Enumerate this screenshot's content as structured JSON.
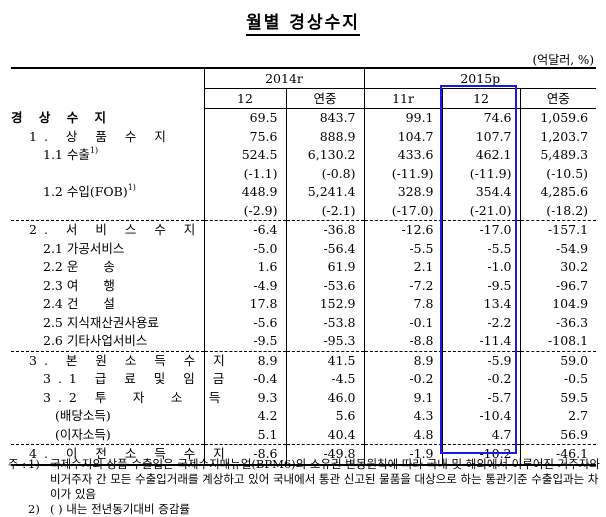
{
  "title": "월별 경상수지",
  "unit": "(억달러, %)",
  "header": {
    "y2014": "2014r",
    "y2015": "2015p",
    "cols": [
      "12",
      "연중",
      "11r",
      "12",
      "연중"
    ]
  },
  "rows": [
    {
      "label": "경 상 수 지",
      "v": [
        "69.5",
        "843.7",
        "99.1",
        "74.6",
        "1,059.6"
      ]
    },
    {
      "label": "1. 상 품 수 지",
      "v": [
        "75.6",
        "888.9",
        "104.7",
        "107.7",
        "1,203.7"
      ]
    },
    {
      "label": "1.1 수출",
      "sup": "1)",
      "v": [
        "524.5",
        "6,130.2",
        "433.6",
        "462.1",
        "5,489.3"
      ]
    },
    {
      "label": "",
      "v": [
        "(-1.1)",
        "(-0.8)",
        "(-11.9)",
        "(-11.9)",
        "(-10.5)"
      ]
    },
    {
      "label": "1.2 수입(FOB)",
      "sup": "1)",
      "v": [
        "448.9",
        "5,241.4",
        "328.9",
        "354.4",
        "4,285.6"
      ]
    },
    {
      "label": "",
      "v": [
        "(-2.9)",
        "(-2.1)",
        "(-17.0)",
        "(-21.0)",
        "(-18.2)"
      ]
    },
    {
      "label": "2. 서 비 스 수 지",
      "v": [
        "-6.4",
        "-36.8",
        "-12.6",
        "-17.0",
        "-157.1"
      ]
    },
    {
      "label": "2.1 가공서비스",
      "v": [
        "-5.0",
        "-56.4",
        "-5.5",
        "-5.5",
        "-54.9"
      ]
    },
    {
      "label": "2.2 운　　송",
      "v": [
        "1.6",
        "61.9",
        "2.1",
        "-1.0",
        "30.2"
      ]
    },
    {
      "label": "2.3 여　　행",
      "v": [
        "-4.9",
        "-53.6",
        "-7.2",
        "-9.5",
        "-96.7"
      ]
    },
    {
      "label": "2.4 건　　설",
      "v": [
        "17.8",
        "152.9",
        "7.8",
        "13.4",
        "104.9"
      ]
    },
    {
      "label": "2.5 지식재산권사용료",
      "v": [
        "-5.6",
        "-53.8",
        "-0.1",
        "-2.2",
        "-36.3"
      ]
    },
    {
      "label": "2.6 기타사업서비스",
      "v": [
        "-9.5",
        "-95.3",
        "-8.8",
        "-11.4",
        "-108.1"
      ]
    },
    {
      "label": "3. 본 원 소 득 수 지",
      "v": [
        "8.9",
        "41.5",
        "8.9",
        "-5.9",
        "59.0"
      ]
    },
    {
      "label": "3.1 급 료 및 임 금",
      "v": [
        "-0.4",
        "-4.5",
        "-0.2",
        "-0.2",
        "-0.5"
      ]
    },
    {
      "label": "3.2 투　자　소　득",
      "v": [
        "9.3",
        "46.0",
        "9.1",
        "-5.7",
        "59.5"
      ]
    },
    {
      "label": "(배당소득)",
      "v": [
        "4.2",
        "5.6",
        "4.3",
        "-10.4",
        "2.7"
      ]
    },
    {
      "label": "(이자소득)",
      "v": [
        "5.1",
        "40.4",
        "4.8",
        "4.7",
        "56.9"
      ]
    },
    {
      "label": "4. 이 전 소 득 수 지",
      "v": [
        "-8.6",
        "-49.8",
        "-1.9",
        "-10.2",
        "-46.1"
      ]
    }
  ],
  "notes": {
    "prefix": "주 :",
    "n1": "1)",
    "t1": "국제수지의 상품 수출입은 국제수지매뉴얼(BPM6)의 소유권 변동원칙에 따라 국내 및 해외에서 이루어진 거주자와 비거주자 간 모든 수출입거래를 계상하고 있어 국내에서 통관 신고된 물품을 대상으로 하는 통관기준 수출입과는 차이가 있음",
    "n2": "2)",
    "t2": "(   ) 내는 전년동기대비 증감률"
  },
  "highlight_color": "#1a1ae6"
}
